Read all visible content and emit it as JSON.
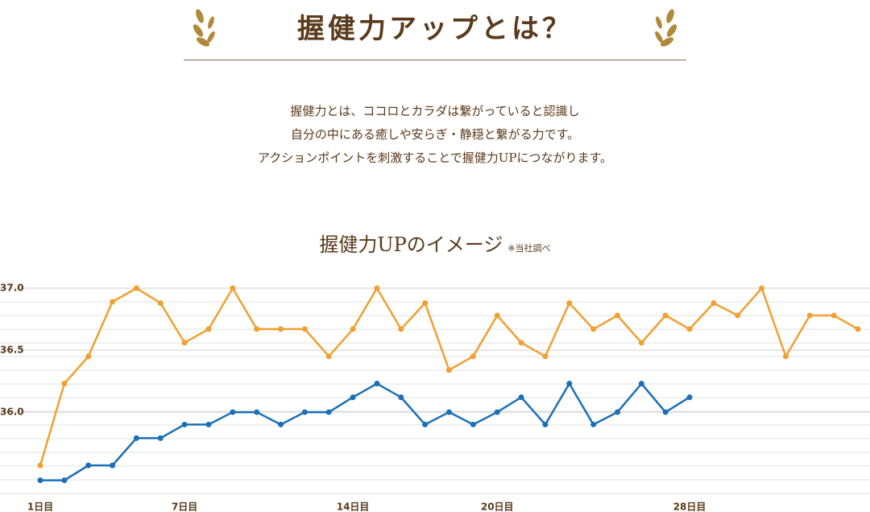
{
  "header": {
    "title": "握健力アップとは？"
  },
  "description": [
    "握健力とは、ココロとカラダは繋がっていると認識し",
    "自分の中にある癒しや安らぎ・静穏と繋がる力です。",
    "アクションポイントを刺激することで握健力UPにつながります。"
  ],
  "chart_data": {
    "type": "line",
    "title": "握健力UPのイメージ",
    "note": "※当社調べ",
    "x": [
      1,
      2,
      3,
      4,
      5,
      6,
      7,
      8,
      9,
      10,
      11,
      12,
      13,
      14,
      15,
      16,
      17,
      18,
      19,
      20,
      21,
      22,
      23,
      24,
      25,
      26,
      27,
      28,
      29,
      30,
      31,
      32,
      33,
      34,
      35
    ],
    "series": [
      {
        "color": "#f0a030",
        "values": [
          35.57,
          36.23,
          36.45,
          36.89,
          37.0,
          36.88,
          36.56,
          36.67,
          37.0,
          36.67,
          36.67,
          36.67,
          36.45,
          36.67,
          37.0,
          36.67,
          36.88,
          36.34,
          36.45,
          36.78,
          36.56,
          36.45,
          36.88,
          36.67,
          36.78,
          36.56,
          36.78,
          36.67,
          36.88,
          36.78,
          37.0,
          36.45,
          36.78,
          36.78,
          36.67
        ]
      },
      {
        "color": "#1a6fb8",
        "values": [
          35.45,
          35.45,
          35.57,
          35.57,
          35.79,
          35.79,
          35.9,
          35.9,
          36.0,
          36.0,
          35.9,
          36.0,
          36.0,
          36.12,
          36.23,
          36.12,
          35.9,
          36.0,
          35.9,
          36.0,
          36.12,
          35.9,
          36.23,
          35.9,
          36.0,
          36.23,
          36.0,
          36.12,
          null,
          null,
          null,
          null,
          null,
          null,
          null
        ]
      }
    ],
    "xlim": [
      1,
      35
    ],
    "xticks": [
      {
        "value": 1,
        "label": "1日目"
      },
      {
        "value": 7,
        "label": "7日目"
      },
      {
        "value": 14,
        "label": "14日目"
      },
      {
        "value": 20,
        "label": "20日目"
      },
      {
        "value": 28,
        "label": "28日目"
      }
    ],
    "ylim": [
      35.35,
      37.0
    ],
    "yticks": [
      {
        "value": 36.0,
        "label": "36.0"
      },
      {
        "value": 36.5,
        "label": "36.5"
      },
      {
        "value": 37.0,
        "label": "37.0"
      }
    ],
    "grid": true
  }
}
